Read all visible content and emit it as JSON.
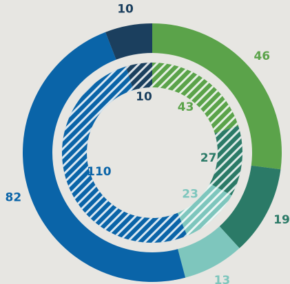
{
  "chart_data": {
    "type": "donut",
    "series": [
      {
        "values": [
          46,
          19,
          13,
          82,
          10
        ],
        "colors": [
          "#5ba34a",
          "#2b7a67",
          "#7ec6bd",
          "#0a64a8",
          "#1b3f5e"
        ]
      },
      {
        "values": [
          43,
          27,
          23,
          110,
          10
        ],
        "colors": [
          "#5ba34a",
          "#2b7a67",
          "#7ec6bd",
          "#0a64a8",
          "#1b3f5e"
        ],
        "hatched": true
      }
    ]
  }
}
